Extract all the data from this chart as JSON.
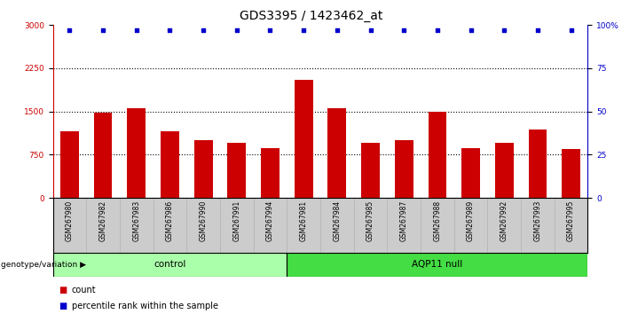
{
  "title": "GDS3395 / 1423462_at",
  "categories": [
    "GSM267980",
    "GSM267982",
    "GSM267983",
    "GSM267986",
    "GSM267990",
    "GSM267991",
    "GSM267994",
    "GSM267981",
    "GSM267984",
    "GSM267985",
    "GSM267987",
    "GSM267988",
    "GSM267989",
    "GSM267992",
    "GSM267993",
    "GSM267995"
  ],
  "bar_values": [
    1150,
    1480,
    1550,
    1150,
    1000,
    960,
    870,
    2050,
    1560,
    950,
    1000,
    1500,
    870,
    950,
    1180,
    850
  ],
  "percentile_values": [
    97,
    97,
    97,
    97,
    97,
    97,
    97,
    97,
    97,
    97,
    97,
    97,
    97,
    97,
    97,
    97
  ],
  "bar_color": "#cc0000",
  "dot_color": "#0000cc",
  "ylim_left": [
    0,
    3000
  ],
  "ylim_right": [
    0,
    100
  ],
  "yticks_left": [
    0,
    750,
    1500,
    2250,
    3000
  ],
  "ytick_labels_left": [
    "0",
    "750",
    "1500",
    "2250",
    "3000"
  ],
  "yticks_right": [
    0,
    25,
    50,
    75,
    100
  ],
  "ytick_labels_right": [
    "0",
    "25",
    "50",
    "75",
    "100%"
  ],
  "grid_values": [
    750,
    1500,
    2250
  ],
  "n_control": 7,
  "n_aqp": 9,
  "control_label": "control",
  "aqp_label": "AQP11 null",
  "genotype_label": "genotype/variation",
  "legend_count_label": "count",
  "legend_pct_label": "percentile rank within the sample",
  "bg_color": "#ffffff",
  "tick_area_bg": "#cccccc",
  "control_bg": "#aaffaa",
  "aqp_bg": "#44dd44",
  "title_fontsize": 10,
  "tick_fontsize": 6.5,
  "bar_width": 0.55
}
